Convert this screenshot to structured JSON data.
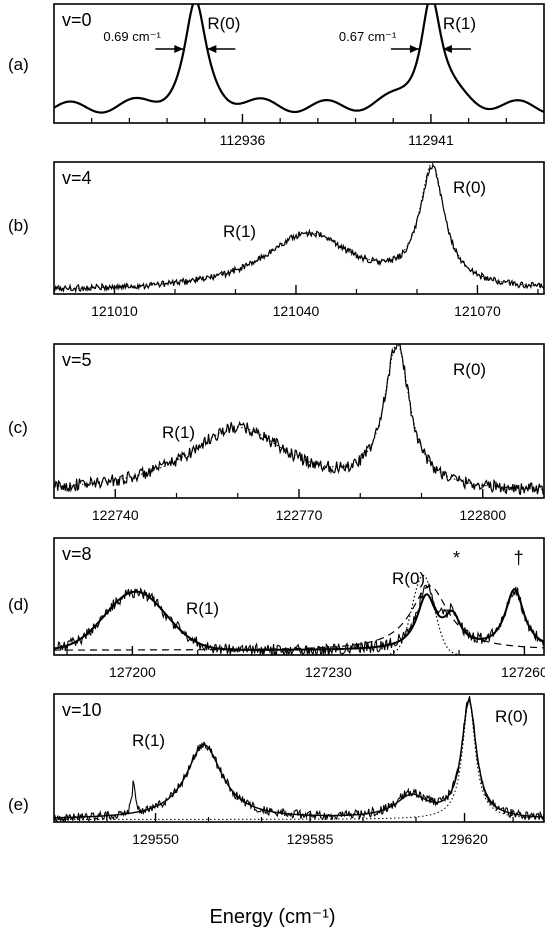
{
  "xlabel": "Energy (cm⁻¹)",
  "chart_data": [
    {
      "panel": "(a)",
      "type": "line",
      "state": "v=0",
      "xlim": [
        112931.0,
        112944.0
      ],
      "ticks": [
        112936,
        112941
      ],
      "minor_ticks": [
        112932,
        112933,
        112934,
        112935,
        112937,
        112938,
        112939,
        112940,
        112942,
        112943
      ],
      "series": [
        {
          "style": "solid",
          "width": 2.2,
          "components": [
            [
              "L",
              112934.75,
              0.69,
              0.86
            ],
            [
              "L",
              112941.0,
              0.67,
              0.98
            ]
          ],
          "baseline": 0.12,
          "ripple": 0.05,
          "ripple_period": 1.7,
          "noise": 0
        }
      ],
      "peaks": [
        {
          "label": "R(0)",
          "x": 112934.75,
          "fwhm_label": "0.69 cm⁻¹"
        },
        {
          "label": "R(1)",
          "x": 112941.0,
          "fwhm_label": "0.67 cm⁻¹"
        }
      ]
    },
    {
      "panel": "(b)",
      "type": "line",
      "state": "v=4",
      "xlim": [
        121000,
        121081
      ],
      "ticks": [
        121010,
        121040,
        121070
      ],
      "minor_ticks": [
        121020,
        121030,
        121050,
        121060,
        121080
      ],
      "series": [
        {
          "style": "solid",
          "width": 1.2,
          "components": [
            [
              "L",
              121042,
              18,
              0.43
            ],
            [
              "L",
              121062.5,
              5,
              0.88
            ]
          ],
          "baseline": 0.02,
          "ripple": 0,
          "ripple_period": 1,
          "noise": 0.025
        },
        {
          "style": "dotted",
          "width": 1.0,
          "components": [
            [
              "L",
              121042,
              18,
              0.43
            ],
            [
              "L",
              121062.5,
              5,
              0.9
            ]
          ],
          "baseline": 0.02,
          "ripple": 0,
          "ripple_period": 1,
          "noise": 0
        }
      ],
      "peaks": [
        {
          "label": "R(1)",
          "x": 121042
        },
        {
          "label": "R(0)",
          "x": 121062.5
        }
      ]
    },
    {
      "panel": "(c)",
      "type": "line",
      "state": "v=5",
      "xlim": [
        122730,
        122810
      ],
      "ticks": [
        122740,
        122770,
        122800
      ],
      "minor_ticks": [
        122750,
        122760,
        122780,
        122790
      ],
      "series": [
        {
          "style": "solid",
          "width": 1.2,
          "components": [
            [
              "L",
              122760,
              20,
              0.42
            ],
            [
              "L",
              122786,
              5,
              0.92
            ]
          ],
          "baseline": 0.03,
          "ripple": 0,
          "ripple_period": 1,
          "noise": 0.04
        },
        {
          "style": "dotted",
          "width": 1.0,
          "components": [
            [
              "L",
              122760,
              20,
              0.42
            ],
            [
              "L",
              122786,
              5,
              0.92
            ]
          ],
          "baseline": 0.03,
          "ripple": 0,
          "ripple_period": 1,
          "noise": 0
        }
      ],
      "peaks": [
        {
          "label": "R(1)",
          "x": 122760
        },
        {
          "label": "R(0)",
          "x": 122786
        }
      ]
    },
    {
      "panel": "(d)",
      "type": "line",
      "state": "v=8",
      "xlim": [
        127188,
        127263
      ],
      "ticks": [
        127200,
        127230,
        127260
      ],
      "minor_ticks": [
        127190,
        127210,
        127220,
        127240,
        127250
      ],
      "series": [
        {
          "style": "solid",
          "width": 1.1,
          "components": [
            [
              "G",
              127200.5,
              11,
              0.5
            ],
            [
              "L",
              127245,
              3.5,
              0.52
            ],
            [
              "L",
              127249,
              3,
              0.25
            ],
            [
              "L",
              127258.5,
              3.5,
              0.51
            ]
          ],
          "baseline": 0.04,
          "ripple": 0,
          "ripple_period": 1,
          "noise": 0.05
        },
        {
          "style": "solid",
          "width": 2.0,
          "components": [
            [
              "G",
              127200.5,
              11,
              0.5
            ],
            [
              "L",
              127245,
              3.5,
              0.44
            ],
            [
              "L",
              127249,
              3,
              0.25
            ],
            [
              "L",
              127258.5,
              3.5,
              0.51
            ]
          ],
          "baseline": 0.04,
          "ripple": 0,
          "ripple_period": 1,
          "noise": 0
        },
        {
          "style": "dashed",
          "width": 1.2,
          "components": [
            [
              "L",
              127245.5,
              7,
              0.55
            ]
          ],
          "baseline": 0.04,
          "ripple": 0,
          "ripple_period": 1,
          "noise": 0
        },
        {
          "style": "dotted",
          "width": 1.2,
          "components": [
            [
              "G",
              127244.5,
              4,
              0.68
            ]
          ],
          "baseline": 0.0,
          "ripple": 0,
          "ripple_period": 1,
          "noise": 0
        }
      ],
      "peaks": [
        {
          "label": "R(1)",
          "x": 127200.5
        },
        {
          "label": "R(0)",
          "x": 127245
        }
      ],
      "annotations": [
        {
          "text": "*",
          "x": 127249
        },
        {
          "text": "†",
          "x": 127258.5
        }
      ]
    },
    {
      "panel": "(e)",
      "type": "line",
      "state": "v=10",
      "xlim": [
        129527,
        129638
      ],
      "ticks": [
        129550,
        129585,
        129620
      ],
      "minor_ticks": [
        129539,
        129562,
        129574,
        129597,
        129609,
        129631
      ],
      "series": [
        {
          "style": "solid",
          "width": 1.1,
          "components": [
            [
              "L",
              129545,
              0.8,
              0.25
            ],
            [
              "L",
              129561,
              10,
              0.58
            ],
            [
              "L",
              129608,
              9,
              0.19
            ],
            [
              "L",
              129621,
              4,
              0.91
            ]
          ],
          "baseline": 0.02,
          "ripple": 0,
          "ripple_period": 1,
          "noise": 0.035
        },
        {
          "style": "solid",
          "width": 1.4,
          "components": [
            [
              "L",
              129561,
              10,
              0.58
            ],
            [
              "L",
              129608,
              9,
              0.17
            ],
            [
              "L",
              129621,
              4,
              0.91
            ]
          ],
          "baseline": 0.02,
          "ripple": 0,
          "ripple_period": 1,
          "noise": 0
        },
        {
          "style": "dotted",
          "width": 1.0,
          "components": [
            [
              "L",
              129621,
              3.5,
              0.93
            ]
          ],
          "baseline": 0.02,
          "ripple": 0,
          "ripple_period": 1,
          "noise": 0
        }
      ],
      "peaks": [
        {
          "label": "R(1)",
          "x": 129561
        },
        {
          "label": "R(0)",
          "x": 129621
        }
      ]
    }
  ]
}
